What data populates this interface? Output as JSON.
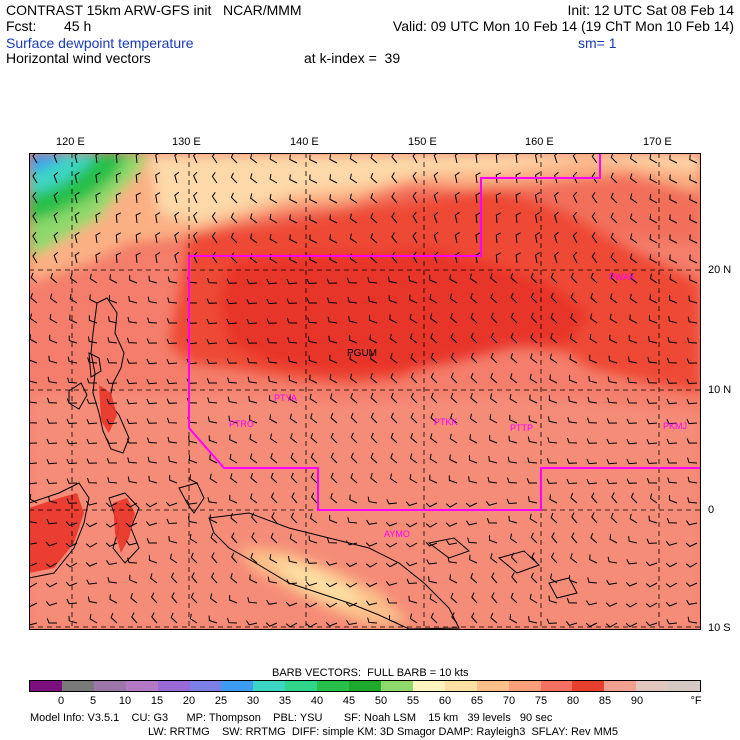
{
  "header": {
    "line1_left": "CONTRAST 15km ARW-GFS init   NCAR/MMM",
    "line1_right": "Init: 12 UTC Sat 08 Feb 14",
    "fcst_label": "Fcst:",
    "fcst_value": "45 h",
    "valid": "Valid: 09 UTC Mon 10 Feb 14 (19 ChT Mon 10 Feb 14)",
    "field1": "Surface dewpoint temperature",
    "sm": "sm= 1",
    "field2": "Horizontal wind vectors",
    "kindex": "at k-index =  39"
  },
  "axes": {
    "lon_ticks": [
      "120 E",
      "130 E",
      "140 E",
      "150 E",
      "160 E",
      "170 E"
    ],
    "lat_ticks": [
      "20 N",
      "10 N",
      "0",
      "10 S"
    ]
  },
  "stations": [
    {
      "id": "PGUM",
      "color": "#000000"
    },
    {
      "id": "PTYA",
      "color": "#ff00ff"
    },
    {
      "id": "PTRO",
      "color": "#ff00ff"
    },
    {
      "id": "PTKK",
      "color": "#ff00ff"
    },
    {
      "id": "PTTP",
      "color": "#ff00ff"
    },
    {
      "id": "PKMJ",
      "color": "#ff00ff"
    },
    {
      "id": "PWAK",
      "color": "#ff00ff"
    },
    {
      "id": "AYMO",
      "color": "#ff00ff"
    }
  ],
  "legend": {
    "barb_text": "BARB VECTORS:  FULL BARB = 10 kts",
    "labels": [
      "0",
      "5",
      "10",
      "15",
      "20",
      "25",
      "30",
      "35",
      "40",
      "45",
      "50",
      "55",
      "60",
      "65",
      "70",
      "75",
      "80",
      "85",
      "90"
    ],
    "unit": "°F",
    "colors": [
      "#7b0f7b",
      "#7a7a7a",
      "#9a78a8",
      "#b57ac6",
      "#9a6bd8",
      "#7c7fe6",
      "#3d9cf0",
      "#3dd6c4",
      "#2ed58a",
      "#26c04a",
      "#1ea82c",
      "#8fd86c",
      "#fff3c0",
      "#fde0a4",
      "#fcc08a",
      "#f9a07a",
      "#f47060",
      "#e8402e",
      "#f2a090",
      "#e0c8c0",
      "#d4c9c4"
    ]
  },
  "model_info": {
    "line1": "Model Info: V3.5.1    CU: G3      MP: Thompson    PBL: YSU       SF: Noah LSM    15 km   39 levels   90 sec",
    "line2": "LW: RRTMG    SW: RRTMG  DIFF: simple KM: 3D Smagor DAMP: Rayleigh3  SFLAY: Rev MM5"
  }
}
